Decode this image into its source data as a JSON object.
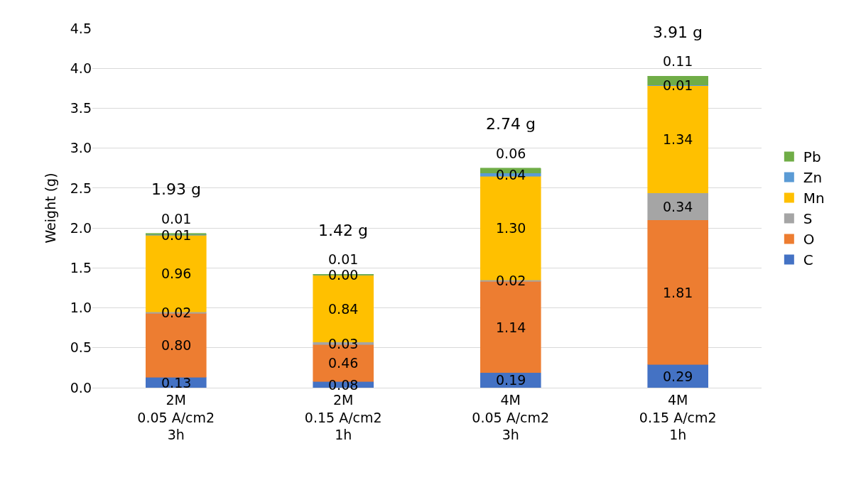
{
  "chart_data": {
    "type": "bar",
    "stacked": true,
    "ylabel": "Weight (g)",
    "categories": [
      "2M\n0.05 A/cm2\n3h",
      "2M\n0.15 A/cm2\n1h",
      "4M\n0.05 A/cm2\n3h",
      "4M\n0.15 A/cm2\n1h"
    ],
    "series": [
      {
        "name": "C",
        "color": "#4472c4",
        "values": [
          0.13,
          0.08,
          0.19,
          0.29
        ],
        "value_labels": [
          "0.13",
          "0.08",
          "0.19",
          "0.29"
        ]
      },
      {
        "name": "O",
        "color": "#ed7d31",
        "values": [
          0.8,
          0.46,
          1.14,
          1.81
        ],
        "value_labels": [
          "0.80",
          "0.46",
          "1.14",
          "1.81"
        ]
      },
      {
        "name": "S",
        "color": "#a5a5a5",
        "values": [
          0.02,
          0.03,
          0.02,
          0.34
        ],
        "value_labels": [
          "0.02",
          "0.03",
          "0.02",
          "0.34"
        ]
      },
      {
        "name": "Mn",
        "color": "#ffc000",
        "values": [
          0.96,
          0.84,
          1.3,
          1.34
        ],
        "value_labels": [
          "0.96",
          "0.84",
          "1.30",
          "1.34"
        ]
      },
      {
        "name": "Zn",
        "color": "#5b9bd5",
        "values": [
          0.01,
          0.0,
          0.04,
          0.01
        ],
        "value_labels": [
          "0.01",
          "0.00",
          "0.04",
          "0.01"
        ]
      },
      {
        "name": "Pb",
        "color": "#70ad47",
        "values": [
          0.01,
          0.01,
          0.06,
          0.11
        ],
        "value_labels": [
          "0.01",
          "0.01",
          "0.06",
          "0.11"
        ]
      }
    ],
    "totals": [
      "1.93 g",
      "1.42 g",
      "2.74 g",
      "3.91 g"
    ],
    "ylim": [
      0,
      4.5
    ],
    "yticks": [
      {
        "value": 0,
        "label": "0.0"
      },
      {
        "value": 0.5,
        "label": "0.5"
      },
      {
        "value": 1,
        "label": "1.0"
      },
      {
        "value": 1.5,
        "label": "1.5"
      },
      {
        "value": 2,
        "label": "2.0"
      },
      {
        "value": 2.5,
        "label": "2.5"
      },
      {
        "value": 3,
        "label": "3.0"
      },
      {
        "value": 3.5,
        "label": "3.5"
      },
      {
        "value": 4,
        "label": "4.0"
      },
      {
        "value": 4.5,
        "label": "4.5"
      }
    ],
    "grid": "y",
    "legend": "right"
  }
}
